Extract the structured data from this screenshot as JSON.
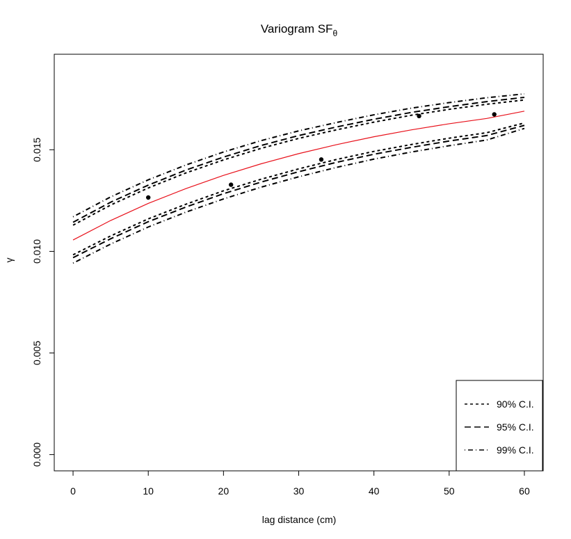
{
  "chart_data": {
    "type": "line",
    "title": "Variogram SF",
    "title_subscript": "θ",
    "xlabel": "lag distance (cm)",
    "ylabel": "γ",
    "xlim": [
      -2.5,
      62.5
    ],
    "ylim": [
      -0.0008,
      0.0197
    ],
    "x_ticks": [
      0,
      10,
      20,
      30,
      40,
      50,
      60
    ],
    "y_ticks": [
      0.0,
      0.005,
      0.01,
      0.015
    ],
    "y_tick_labels": [
      "0.000",
      "0.005",
      "0.010",
      "0.015"
    ],
    "legend": {
      "position": "bottom-right",
      "entries": [
        {
          "label": "90% C.I.",
          "dash": "short"
        },
        {
          "label": "95% C.I.",
          "dash": "long"
        },
        {
          "label": "99% C.I.",
          "dash": "dotdash"
        }
      ]
    },
    "model": {
      "color": "#e8101a",
      "x": [
        0,
        5,
        10,
        15,
        20,
        25,
        30,
        35,
        40,
        45,
        50,
        55,
        60
      ],
      "y": [
        0.01056,
        0.01152,
        0.01236,
        0.01309,
        0.01374,
        0.01431,
        0.01481,
        0.01525,
        0.01564,
        0.01598,
        0.01628,
        0.01654,
        0.0169
      ]
    },
    "points": {
      "x": [
        10,
        21,
        33,
        46,
        56
      ],
      "y": [
        0.01265,
        0.01328,
        0.01452,
        0.01666,
        0.01674
      ]
    },
    "envelopes": [
      {
        "level": "90% C.I.",
        "dash": "short",
        "x": [
          0,
          5,
          10,
          15,
          20,
          25,
          30,
          35,
          40,
          45,
          50,
          55,
          60
        ],
        "upper": [
          0.01129,
          0.01228,
          0.01312,
          0.01386,
          0.0145,
          0.01507,
          0.01556,
          0.01598,
          0.01636,
          0.0167,
          0.01699,
          0.01724,
          0.01745
        ],
        "lower": [
          0.00983,
          0.01076,
          0.0116,
          0.01232,
          0.01298,
          0.01355,
          0.01406,
          0.01452,
          0.01492,
          0.01526,
          0.01557,
          0.01584,
          0.01632
        ]
      },
      {
        "level": "95% C.I.",
        "dash": "long",
        "x": [
          0,
          5,
          10,
          15,
          20,
          25,
          30,
          35,
          40,
          45,
          50,
          55,
          60
        ],
        "upper": [
          0.01143,
          0.01242,
          0.01326,
          0.014,
          0.01464,
          0.01521,
          0.0157,
          0.01612,
          0.0165,
          0.01684,
          0.01712,
          0.01737,
          0.01758
        ],
        "lower": [
          0.00969,
          0.01062,
          0.01146,
          0.01218,
          0.01284,
          0.01341,
          0.01392,
          0.01438,
          0.01478,
          0.01512,
          0.01543,
          0.0157,
          0.0162
        ]
      },
      {
        "level": "99% C.I.",
        "dash": "dotdash",
        "x": [
          0,
          5,
          10,
          15,
          20,
          25,
          30,
          35,
          40,
          45,
          50,
          55,
          60
        ],
        "upper": [
          0.0117,
          0.01268,
          0.01352,
          0.01425,
          0.01489,
          0.01545,
          0.01593,
          0.01634,
          0.01672,
          0.01705,
          0.01732,
          0.01756,
          0.01775
        ],
        "lower": [
          0.00942,
          0.01036,
          0.0112,
          0.01193,
          0.01258,
          0.01316,
          0.01367,
          0.01413,
          0.01454,
          0.01489,
          0.0152,
          0.01548,
          0.01605
        ]
      }
    ]
  }
}
